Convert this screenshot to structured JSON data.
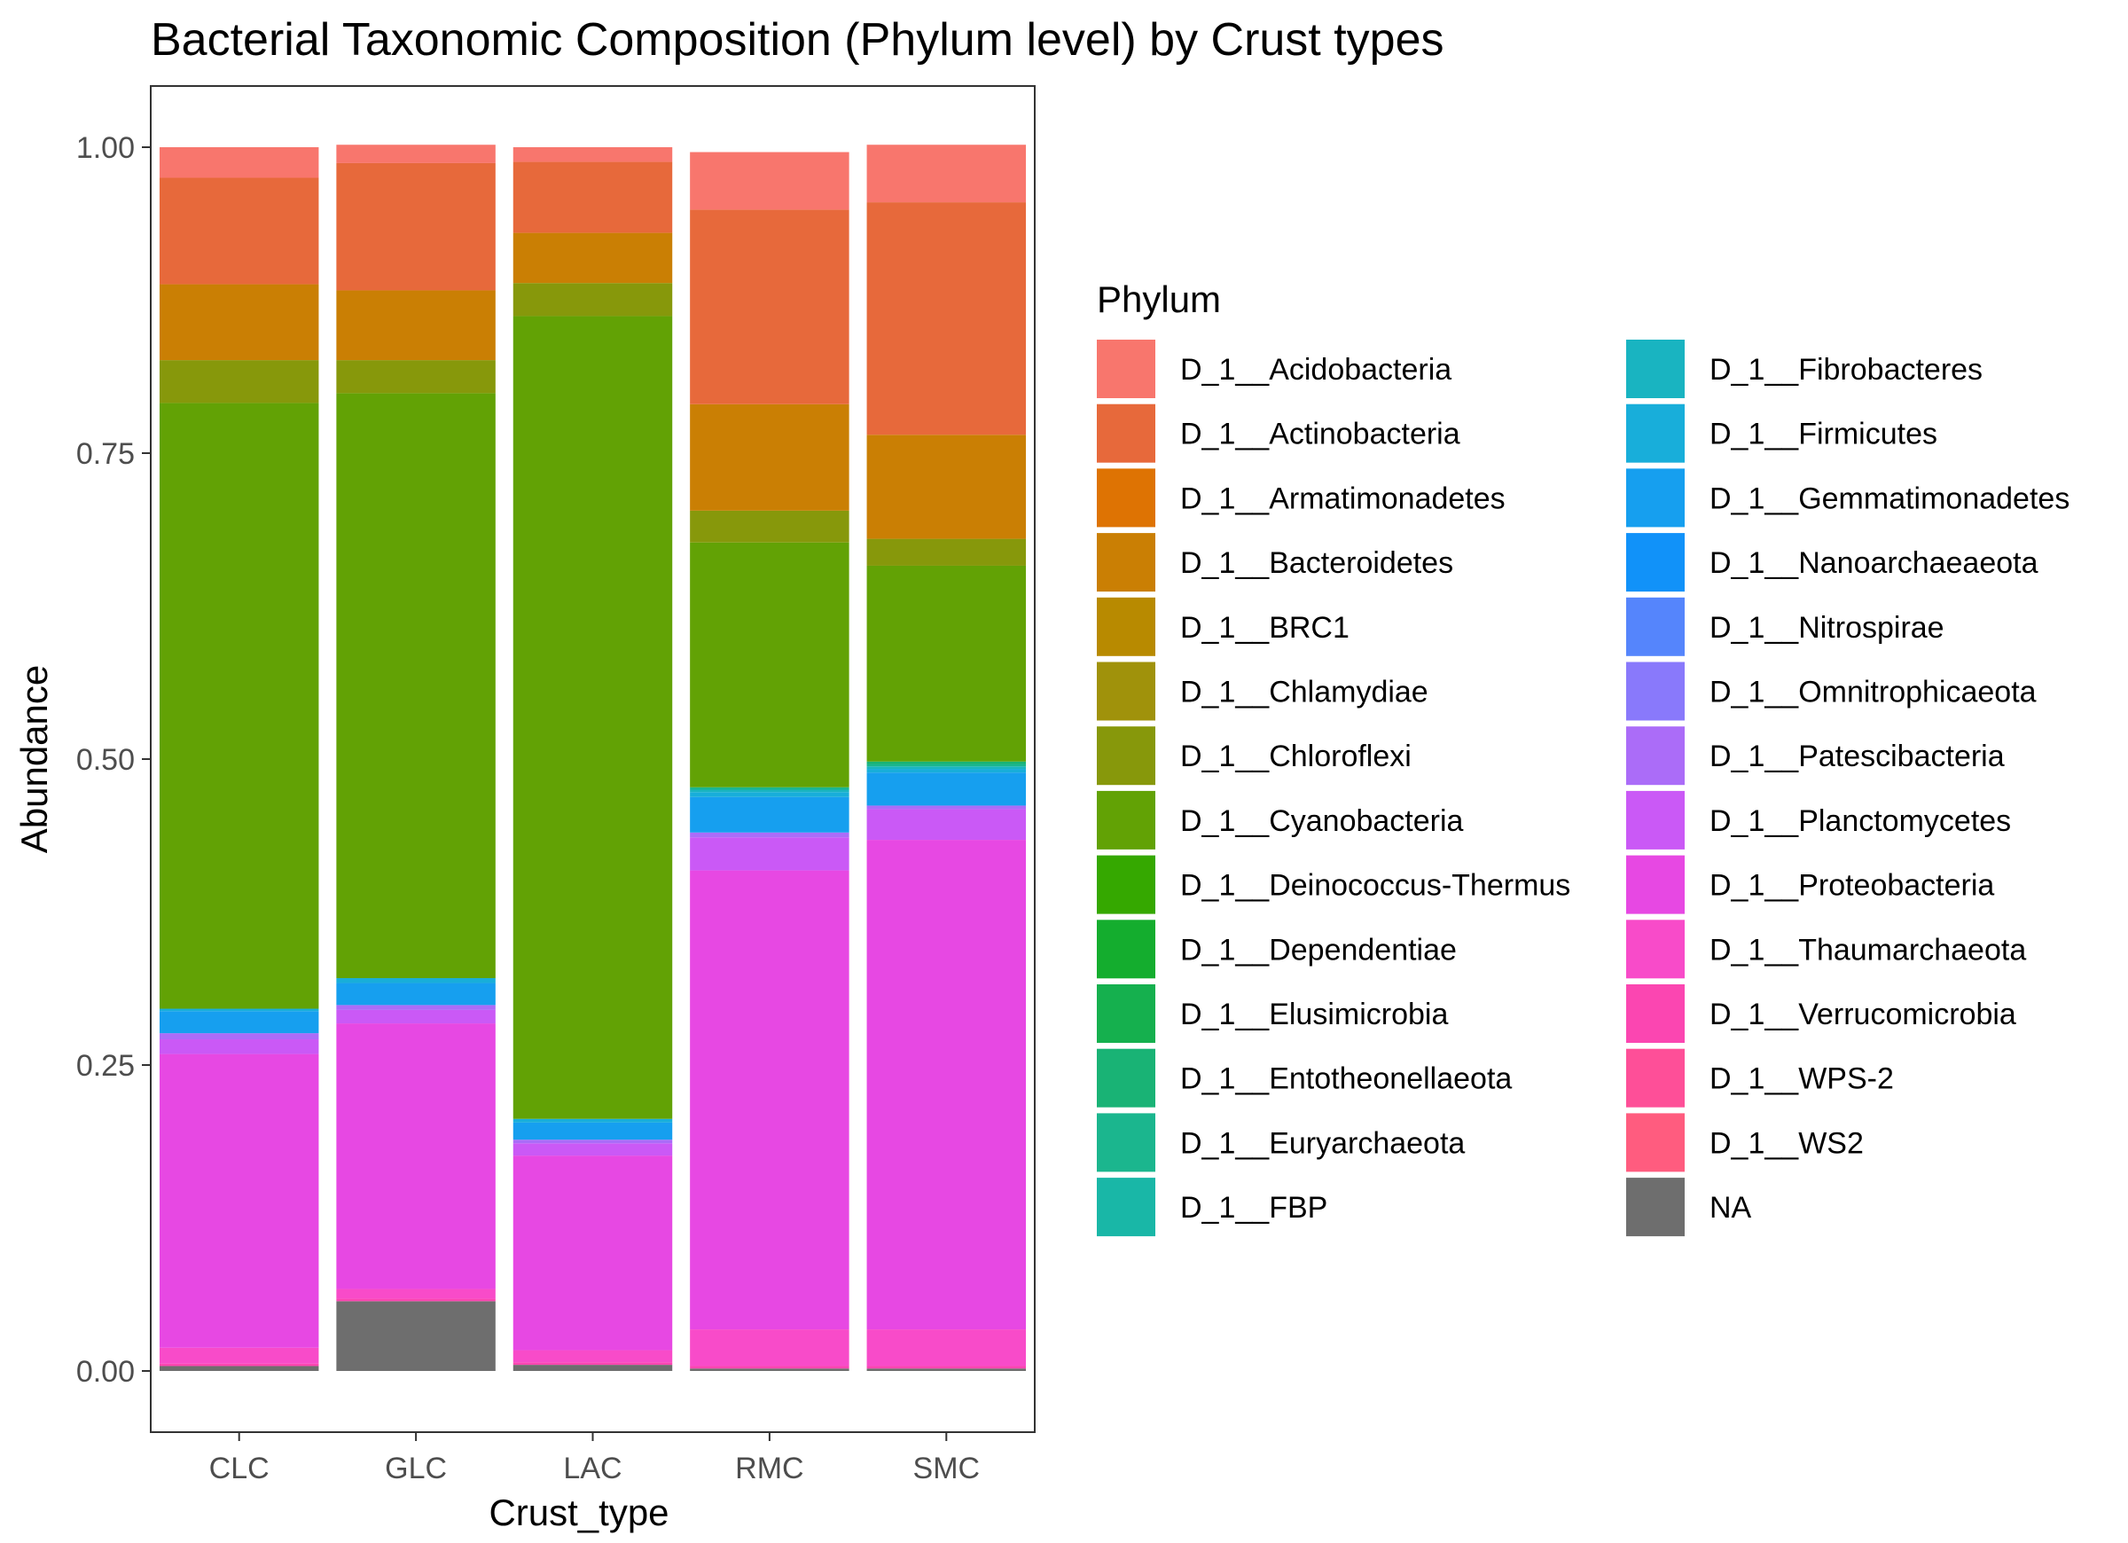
{
  "chart_data": {
    "type": "bar",
    "stacked": true,
    "title": "Bacterial Taxonomic Composition (Phylum level) by Crust types",
    "xlabel": "Crust_type",
    "ylabel": "Abundance",
    "ylim": [
      0,
      1
    ],
    "yticks": [
      "0.00",
      "0.25",
      "0.50",
      "0.75",
      "1.00"
    ],
    "ytick_values": [
      0,
      0.25,
      0.5,
      0.75,
      1.0
    ],
    "grid": false,
    "legend_title": "Phylum",
    "legend_position": "right",
    "categories": [
      "CLC",
      "GLC",
      "LAC",
      "RMC",
      "SMC"
    ],
    "stack_order_note": "",
    "series": [
      {
        "name": "D_1__Acidobacteria",
        "color": "#F8766D",
        "values": [
          0.025,
          0.015,
          0.012,
          0.047,
          0.047
        ]
      },
      {
        "name": "D_1__Actinobacteria",
        "color": "#E7693B",
        "values": [
          0.087,
          0.104,
          0.058,
          0.159,
          0.19
        ]
      },
      {
        "name": "D_1__Armatimonadetes",
        "color": "#DE7303",
        "values": [
          0.0,
          0.0,
          0.0,
          0.0,
          0.0
        ]
      },
      {
        "name": "D_1__Bacteroidetes",
        "color": "#CA7F04",
        "values": [
          0.062,
          0.057,
          0.041,
          0.087,
          0.085
        ]
      },
      {
        "name": "D_1__BRC1",
        "color": "#B88A00",
        "values": [
          0.0,
          0.0,
          0.0,
          0.0,
          0.0
        ]
      },
      {
        "name": "D_1__Chlamydiae",
        "color": "#A0920B",
        "values": [
          0.0,
          0.0,
          0.0,
          0.0,
          0.0
        ]
      },
      {
        "name": "D_1__Chloroflexi",
        "color": "#87980B",
        "values": [
          0.035,
          0.027,
          0.027,
          0.026,
          0.022
        ]
      },
      {
        "name": "D_1__Cyanobacteria",
        "color": "#62A205",
        "values": [
          0.495,
          0.478,
          0.656,
          0.2,
          0.16
        ]
      },
      {
        "name": "D_1__Deinococcus-Thermus",
        "color": "#35A800",
        "values": [
          0.0,
          0.0,
          0.0,
          0.0,
          0.0
        ]
      },
      {
        "name": "D_1__Dependentiae",
        "color": "#14AD2E",
        "values": [
          0.0,
          0.0,
          0.0,
          0.0,
          0.0
        ]
      },
      {
        "name": "D_1__Elusimicrobia",
        "color": "#15B04E",
        "values": [
          0.0,
          0.0,
          0.0,
          0.0,
          0.0
        ]
      },
      {
        "name": "D_1__Entotheonellaeota",
        "color": "#19B375",
        "values": [
          0.0,
          0.0,
          0.0,
          0.0,
          0.002
        ]
      },
      {
        "name": "D_1__Euryarchaeota",
        "color": "#1BB68E",
        "values": [
          0.0,
          0.0,
          0.0,
          0.002,
          0.002
        ]
      },
      {
        "name": "D_1__FBP",
        "color": "#19B7A7",
        "values": [
          0.0,
          0.0,
          0.0,
          0.0,
          0.0
        ]
      },
      {
        "name": "D_1__Fibrobacteres",
        "color": "#19B4C1",
        "values": [
          0.0,
          0.0,
          0.0,
          0.002,
          0.002
        ]
      },
      {
        "name": "D_1__Firmicutes",
        "color": "#18AEDA",
        "values": [
          0.002,
          0.004,
          0.003,
          0.004,
          0.003
        ]
      },
      {
        "name": "D_1__Gemmatimonadetes",
        "color": "#169FEF",
        "values": [
          0.018,
          0.018,
          0.014,
          0.029,
          0.027
        ]
      },
      {
        "name": "D_1__Nanoarchaeaeota",
        "color": "#1192F9",
        "values": [
          0.0,
          0.0,
          0.0,
          0.0,
          0.0
        ]
      },
      {
        "name": "D_1__Nitrospirae",
        "color": "#5585FC",
        "values": [
          0.0,
          0.0,
          0.0,
          0.0,
          0.0
        ]
      },
      {
        "name": "D_1__Omnitrophicaeota",
        "color": "#8979FB",
        "values": [
          0.0,
          0.0,
          0.0,
          0.0,
          0.0
        ]
      },
      {
        "name": "D_1__Patescibacteria",
        "color": "#AB6CF8",
        "values": [
          0.005,
          0.004,
          0.003,
          0.004,
          0.003
        ]
      },
      {
        "name": "D_1__Planctomycetes",
        "color": "#CA59F6",
        "values": [
          0.012,
          0.011,
          0.01,
          0.027,
          0.025
        ]
      },
      {
        "name": "D_1__Proteobacteria",
        "color": "#E748E3",
        "values": [
          0.24,
          0.217,
          0.159,
          0.375,
          0.4
        ]
      },
      {
        "name": "D_1__Thaumarchaeota",
        "color": "#F84BC9",
        "values": [
          0.013,
          0.008,
          0.01,
          0.03,
          0.03
        ]
      },
      {
        "name": "D_1__Verrucomicrobia",
        "color": "#FB46B1",
        "values": [
          0.002,
          0.002,
          0.002,
          0.002,
          0.002
        ]
      },
      {
        "name": "D_1__WPS-2",
        "color": "#FE4F98",
        "values": [
          0.0,
          0.0,
          0.0,
          0.0,
          0.0
        ]
      },
      {
        "name": "D_1__WS2",
        "color": "#FF5C7F",
        "values": [
          0.0,
          0.0,
          0.0,
          0.0,
          0.0
        ]
      },
      {
        "name": "NA",
        "color": "#6E6E6E",
        "values": [
          0.004,
          0.057,
          0.005,
          0.002,
          0.002
        ]
      }
    ]
  }
}
